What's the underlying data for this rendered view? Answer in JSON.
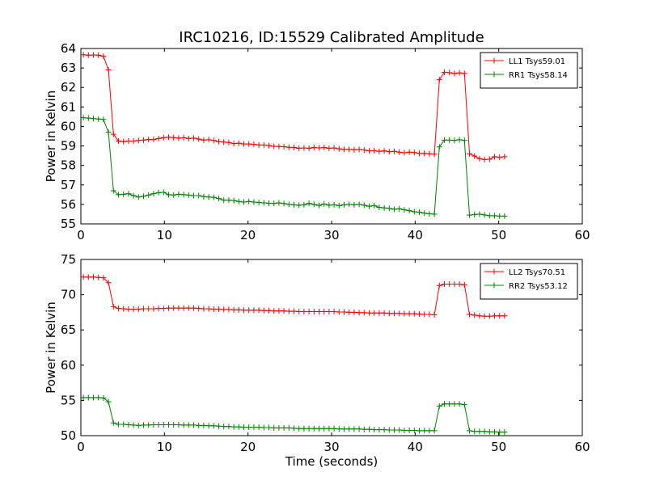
{
  "title": "IRC10216, ID:15529 Calibrated Amplitude",
  "chart_data": [
    {
      "type": "line",
      "ylabel": "Power in Kelvin",
      "xlabel": "",
      "xlim": [
        0,
        60
      ],
      "ylim": [
        55,
        64
      ],
      "xticks": [
        0,
        10,
        20,
        30,
        40,
        50,
        60
      ],
      "yticks": [
        55,
        56,
        57,
        58,
        59,
        60,
        61,
        62,
        63,
        64
      ],
      "grid": false,
      "legend_position": "top-right",
      "series": [
        {
          "name": "LL1 Tsys59.01",
          "color": "#ff0000",
          "x": [
            0.3,
            0.9,
            1.5,
            2.1,
            2.7,
            3.3,
            3.9,
            4.5,
            5.1,
            5.7,
            6.3,
            6.9,
            7.5,
            8.1,
            8.7,
            9.3,
            9.9,
            10.5,
            11.1,
            11.7,
            12.3,
            12.9,
            13.5,
            14.1,
            14.7,
            15.3,
            15.9,
            16.5,
            17.1,
            17.7,
            18.3,
            18.9,
            19.5,
            20.1,
            20.7,
            21.3,
            21.9,
            22.5,
            23.1,
            23.7,
            24.3,
            24.9,
            25.5,
            26.1,
            26.7,
            27.3,
            27.9,
            28.5,
            29.1,
            29.7,
            30.3,
            30.9,
            31.5,
            32.1,
            32.7,
            33.3,
            33.9,
            34.5,
            35.1,
            35.7,
            36.3,
            36.9,
            37.5,
            38.1,
            38.7,
            39.3,
            39.9,
            40.5,
            41.1,
            41.7,
            42.3,
            42.9,
            43.5,
            44.1,
            44.7,
            45.3,
            45.9,
            46.5,
            47.1,
            47.7,
            48.3,
            48.9,
            49.5,
            50.1,
            50.7
          ],
          "y": [
            63.68,
            63.66,
            63.67,
            63.66,
            63.6,
            62.9,
            59.6,
            59.25,
            59.22,
            59.25,
            59.25,
            59.28,
            59.3,
            59.33,
            59.33,
            59.38,
            59.43,
            59.45,
            59.43,
            59.4,
            59.42,
            59.38,
            59.4,
            59.35,
            59.3,
            59.32,
            59.28,
            59.22,
            59.2,
            59.18,
            59.12,
            59.14,
            59.1,
            59.1,
            59.08,
            59.05,
            59.05,
            59.02,
            58.98,
            58.97,
            58.96,
            58.93,
            58.92,
            58.88,
            58.9,
            58.88,
            58.92,
            58.9,
            58.92,
            58.88,
            58.9,
            58.85,
            58.82,
            58.82,
            58.8,
            58.82,
            58.79,
            58.75,
            58.76,
            58.72,
            58.75,
            58.7,
            58.72,
            58.68,
            58.65,
            58.68,
            58.66,
            58.62,
            58.62,
            58.6,
            58.58,
            62.4,
            62.78,
            62.76,
            62.72,
            62.75,
            62.72,
            58.6,
            58.48,
            58.35,
            58.3,
            58.32,
            58.45,
            58.42,
            58.45
          ]
        },
        {
          "name": "RR1 Tsys58.14",
          "color": "#008000",
          "x": [
            0.3,
            0.9,
            1.5,
            2.1,
            2.7,
            3.3,
            3.9,
            4.5,
            5.1,
            5.7,
            6.3,
            6.9,
            7.5,
            8.1,
            8.7,
            9.3,
            9.9,
            10.5,
            11.1,
            11.7,
            12.3,
            12.9,
            13.5,
            14.1,
            14.7,
            15.3,
            15.9,
            16.5,
            17.1,
            17.7,
            18.3,
            18.9,
            19.5,
            20.1,
            20.7,
            21.3,
            21.9,
            22.5,
            23.1,
            23.7,
            24.3,
            24.9,
            25.5,
            26.1,
            26.7,
            27.3,
            27.9,
            28.5,
            29.1,
            29.7,
            30.3,
            30.9,
            31.5,
            32.1,
            32.7,
            33.3,
            33.9,
            34.5,
            35.1,
            35.7,
            36.3,
            36.9,
            37.5,
            38.1,
            38.7,
            39.3,
            39.9,
            40.5,
            41.1,
            41.7,
            42.3,
            42.9,
            43.5,
            44.1,
            44.7,
            45.3,
            45.9,
            46.5,
            47.1,
            47.7,
            48.3,
            48.9,
            49.5,
            50.1,
            50.7
          ],
          "y": [
            60.45,
            60.43,
            60.4,
            60.38,
            60.36,
            59.7,
            56.7,
            56.5,
            56.52,
            56.55,
            56.45,
            56.38,
            56.42,
            56.48,
            56.55,
            56.6,
            56.62,
            56.5,
            56.48,
            56.52,
            56.5,
            56.48,
            56.45,
            56.45,
            56.4,
            56.38,
            56.36,
            56.3,
            56.22,
            56.22,
            56.2,
            56.15,
            56.12,
            56.15,
            56.12,
            56.1,
            56.08,
            56.06,
            56.05,
            56.08,
            56.04,
            56.0,
            55.98,
            55.96,
            55.98,
            56.05,
            56.0,
            55.95,
            56.02,
            55.96,
            55.98,
            55.94,
            55.98,
            56.0,
            55.98,
            56.0,
            55.96,
            55.9,
            55.94,
            55.85,
            55.82,
            55.8,
            55.75,
            55.78,
            55.72,
            55.68,
            55.62,
            55.6,
            55.55,
            55.52,
            55.5,
            58.95,
            59.3,
            59.3,
            59.28,
            59.32,
            59.28,
            55.45,
            55.48,
            55.5,
            55.46,
            55.42,
            55.42,
            55.4,
            55.4
          ]
        }
      ]
    },
    {
      "type": "line",
      "ylabel": "Power in Kelvin",
      "xlabel": "Time (seconds)",
      "xlim": [
        0,
        60
      ],
      "ylim": [
        50,
        75
      ],
      "xticks": [
        0,
        10,
        20,
        30,
        40,
        50,
        60
      ],
      "yticks": [
        50,
        55,
        60,
        65,
        70,
        75
      ],
      "grid": false,
      "legend_position": "top-right",
      "series": [
        {
          "name": "LL2 Tsys70.51",
          "color": "#ff0000",
          "x": [
            0.3,
            0.9,
            1.5,
            2.1,
            2.7,
            3.3,
            3.9,
            4.5,
            5.1,
            5.7,
            6.3,
            6.9,
            7.5,
            8.1,
            8.7,
            9.3,
            9.9,
            10.5,
            11.1,
            11.7,
            12.3,
            12.9,
            13.5,
            14.1,
            14.7,
            15.3,
            15.9,
            16.5,
            17.1,
            17.7,
            18.3,
            18.9,
            19.5,
            20.1,
            20.7,
            21.3,
            21.9,
            22.5,
            23.1,
            23.7,
            24.3,
            24.9,
            25.5,
            26.1,
            26.7,
            27.3,
            27.9,
            28.5,
            29.1,
            29.7,
            30.3,
            30.9,
            31.5,
            32.1,
            32.7,
            33.3,
            33.9,
            34.5,
            35.1,
            35.7,
            36.3,
            36.9,
            37.5,
            38.1,
            38.7,
            39.3,
            39.9,
            40.5,
            41.1,
            41.7,
            42.3,
            42.9,
            43.5,
            44.1,
            44.7,
            45.3,
            45.9,
            46.5,
            47.1,
            47.7,
            48.3,
            48.9,
            49.5,
            50.1,
            50.7
          ],
          "y": [
            72.5,
            72.5,
            72.5,
            72.45,
            72.4,
            71.7,
            68.3,
            68.05,
            68.0,
            67.95,
            67.95,
            67.95,
            68.0,
            68.0,
            68.0,
            68.05,
            68.05,
            68.1,
            68.1,
            68.1,
            68.1,
            68.1,
            68.1,
            68.05,
            68.0,
            68.0,
            67.95,
            67.95,
            67.9,
            67.9,
            67.85,
            67.85,
            67.8,
            67.8,
            67.8,
            67.8,
            67.75,
            67.75,
            67.7,
            67.7,
            67.7,
            67.65,
            67.65,
            67.6,
            67.6,
            67.6,
            67.6,
            67.6,
            67.6,
            67.6,
            67.6,
            67.55,
            67.55,
            67.5,
            67.5,
            67.45,
            67.45,
            67.4,
            67.4,
            67.4,
            67.4,
            67.35,
            67.35,
            67.35,
            67.3,
            67.3,
            67.3,
            67.25,
            67.2,
            67.2,
            67.15,
            71.3,
            71.5,
            71.5,
            71.5,
            71.5,
            71.4,
            67.2,
            67.1,
            67.0,
            66.95,
            66.95,
            67.0,
            67.0,
            67.0
          ]
        },
        {
          "name": "RR2 Tsys53.12",
          "color": "#008000",
          "x": [
            0.3,
            0.9,
            1.5,
            2.1,
            2.7,
            3.3,
            3.9,
            4.5,
            5.1,
            5.7,
            6.3,
            6.9,
            7.5,
            8.1,
            8.7,
            9.3,
            9.9,
            10.5,
            11.1,
            11.7,
            12.3,
            12.9,
            13.5,
            14.1,
            14.7,
            15.3,
            15.9,
            16.5,
            17.1,
            17.7,
            18.3,
            18.9,
            19.5,
            20.1,
            20.7,
            21.3,
            21.9,
            22.5,
            23.1,
            23.7,
            24.3,
            24.9,
            25.5,
            26.1,
            26.7,
            27.3,
            27.9,
            28.5,
            29.1,
            29.7,
            30.3,
            30.9,
            31.5,
            32.1,
            32.7,
            33.3,
            33.9,
            34.5,
            35.1,
            35.7,
            36.3,
            36.9,
            37.5,
            38.1,
            38.7,
            39.3,
            39.9,
            40.5,
            41.1,
            41.7,
            42.3,
            42.9,
            43.5,
            44.1,
            44.7,
            45.3,
            45.9,
            46.5,
            47.1,
            47.7,
            48.3,
            48.9,
            49.5,
            50.1,
            50.7
          ],
          "y": [
            55.4,
            55.4,
            55.4,
            55.4,
            55.35,
            54.8,
            51.8,
            51.6,
            51.6,
            51.55,
            51.5,
            51.45,
            51.5,
            51.5,
            51.55,
            51.55,
            51.55,
            51.55,
            51.55,
            51.55,
            51.5,
            51.5,
            51.5,
            51.45,
            51.45,
            51.4,
            51.4,
            51.35,
            51.3,
            51.3,
            51.25,
            51.25,
            51.2,
            51.2,
            51.2,
            51.2,
            51.15,
            51.15,
            51.1,
            51.1,
            51.1,
            51.1,
            51.05,
            51.0,
            51.0,
            51.0,
            51.0,
            51.0,
            51.0,
            51.0,
            51.0,
            50.95,
            50.95,
            50.95,
            50.95,
            50.95,
            50.9,
            50.9,
            50.85,
            50.85,
            50.85,
            50.8,
            50.8,
            50.8,
            50.75,
            50.75,
            50.75,
            50.7,
            50.7,
            50.7,
            50.7,
            54.2,
            54.5,
            54.5,
            54.5,
            54.5,
            54.4,
            50.7,
            50.6,
            50.6,
            50.6,
            50.55,
            50.55,
            50.5,
            50.5
          ]
        }
      ]
    }
  ]
}
